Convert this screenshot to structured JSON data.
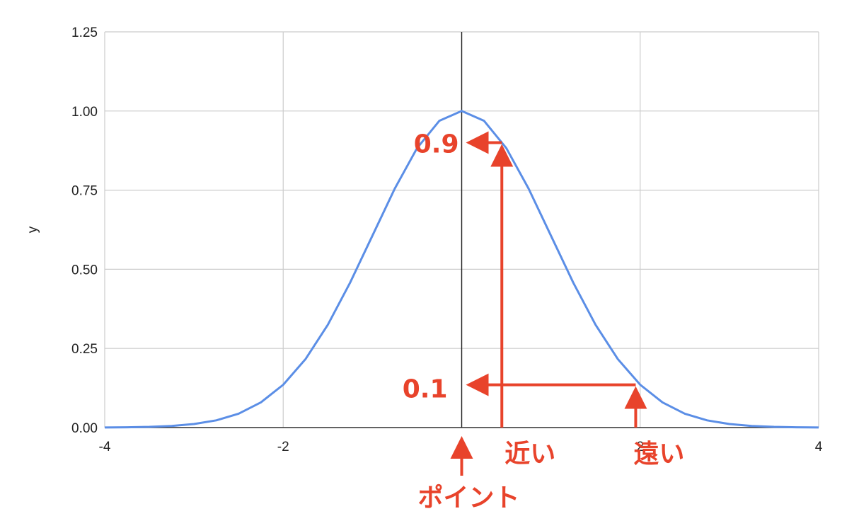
{
  "chart_data": {
    "type": "line",
    "title": "",
    "xlabel": "",
    "ylabel": "y",
    "xlim": [
      -4,
      4
    ],
    "ylim": [
      0,
      1.25
    ],
    "grid": true,
    "x_ticks": [
      "-4",
      "-2",
      "0",
      "2",
      "4"
    ],
    "y_ticks": [
      "0.00",
      "0.25",
      "0.50",
      "0.75",
      "1.00",
      "1.25"
    ],
    "series": [
      {
        "color": "#5b8ee6",
        "x": [
          -4.0,
          -3.75,
          -3.5,
          -3.25,
          -3.0,
          -2.75,
          -2.5,
          -2.25,
          -2.0,
          -1.75,
          -1.5,
          -1.25,
          -1.0,
          -0.75,
          -0.5,
          -0.25,
          0.0,
          0.25,
          0.5,
          0.75,
          1.0,
          1.25,
          1.5,
          1.75,
          2.0,
          2.25,
          2.5,
          2.75,
          3.0,
          3.25,
          3.5,
          3.75,
          4.0
        ],
        "y": [
          0.0003,
          0.0009,
          0.0022,
          0.0051,
          0.0111,
          0.0228,
          0.0439,
          0.0796,
          0.1353,
          0.2163,
          0.3247,
          0.4578,
          0.6065,
          0.7548,
          0.8825,
          0.9692,
          1.0,
          0.9692,
          0.8825,
          0.7548,
          0.6065,
          0.4578,
          0.3247,
          0.2163,
          0.1353,
          0.0796,
          0.0439,
          0.0228,
          0.0111,
          0.0051,
          0.0022,
          0.0009,
          0.0003
        ]
      }
    ],
    "annotations": {
      "color": "#e8432b",
      "near": {
        "value_label": "0.9",
        "text": "近い",
        "x": 0.45,
        "y": 0.9
      },
      "far": {
        "value_label": "0.1",
        "text": "遠い",
        "x": 1.95,
        "y": 0.135
      },
      "point": {
        "text": "ポイント",
        "x": 0
      }
    }
  }
}
